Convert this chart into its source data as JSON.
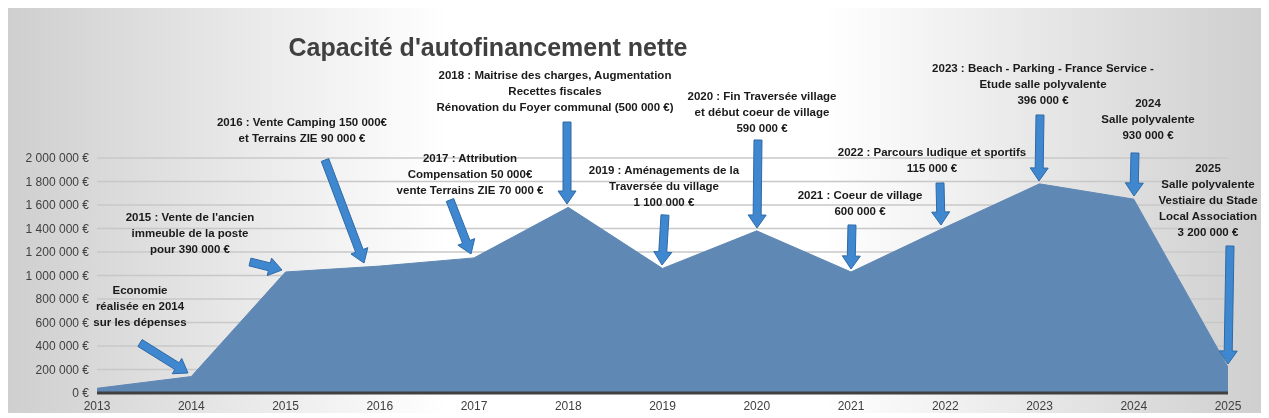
{
  "chart_data": {
    "type": "area",
    "title": "Capacité d'autofinancement nette",
    "x": [
      2013,
      2014,
      2015,
      2016,
      2017,
      2018,
      2019,
      2020,
      2021,
      2022,
      2023,
      2024,
      2025
    ],
    "series": [
      {
        "color": "#5f88b4",
        "values": [
          40000,
          140000,
          1030000,
          1080000,
          1150000,
          1580000,
          1060000,
          1380000,
          1030000,
          1410000,
          1780000,
          1650000,
          220000
        ]
      }
    ],
    "xlim": [
      2013,
      2025
    ],
    "xticks": [
      2013,
      2014,
      2015,
      2016,
      2017,
      2018,
      2019,
      2020,
      2021,
      2022,
      2023,
      2024,
      2025
    ],
    "ylim": [
      0,
      2000000
    ],
    "yticks": [
      {
        "value": 0,
        "label": "0 €"
      },
      {
        "value": 200000,
        "label": "200 000 €"
      },
      {
        "value": 400000,
        "label": "400 000 €"
      },
      {
        "value": 600000,
        "label": "600 000 €"
      },
      {
        "value": 800000,
        "label": "800 000 €"
      },
      {
        "value": 1000000,
        "label": "1 000 000 €"
      },
      {
        "value": 1200000,
        "label": "1 200 000 €"
      },
      {
        "value": 1400000,
        "label": "1 400 000 €"
      },
      {
        "value": 1600000,
        "label": "1 600 000 €"
      },
      {
        "value": 1800000,
        "label": "1 800 000 €"
      },
      {
        "value": 2000000,
        "label": "2 000 000 €"
      }
    ],
    "grid": "y",
    "legend": false,
    "annotations": [
      "Economie\nréalisée  en 2014\nsur les dépenses",
      "2015 : Vente de l'ancien\nimmeuble de la poste\npour 390 000 €",
      "2016 : Vente Camping 150 000€\net Terrains ZIE 90 000 €",
      "2017 : Attribution\nCompensation 50 000€\nvente Terrains ZIE 70 000 €",
      "2018 : Maitrise des charges, Augmentation\nRecettes fiscales\nRénovation du Foyer communal (500 000 €)",
      "2019 : Aménagements de la\nTraversée du village\n1 100 000 €",
      "2020 : Fin Traversée village\net début coeur de village\n590 000  €",
      "2021 : Coeur de village\n600 000  €",
      "2022 : Parcours ludique et sportifs\n115 000  €",
      "2023 : Beach - Parking - France Service -\nEtude salle  polyvalente\n396 000  €",
      "2024\nSalle polyvalente\n930 000  €",
      "2025\nSalle polyvalente\nVestiaire du Stade\nLocal Association\n3 200 000  €"
    ]
  }
}
